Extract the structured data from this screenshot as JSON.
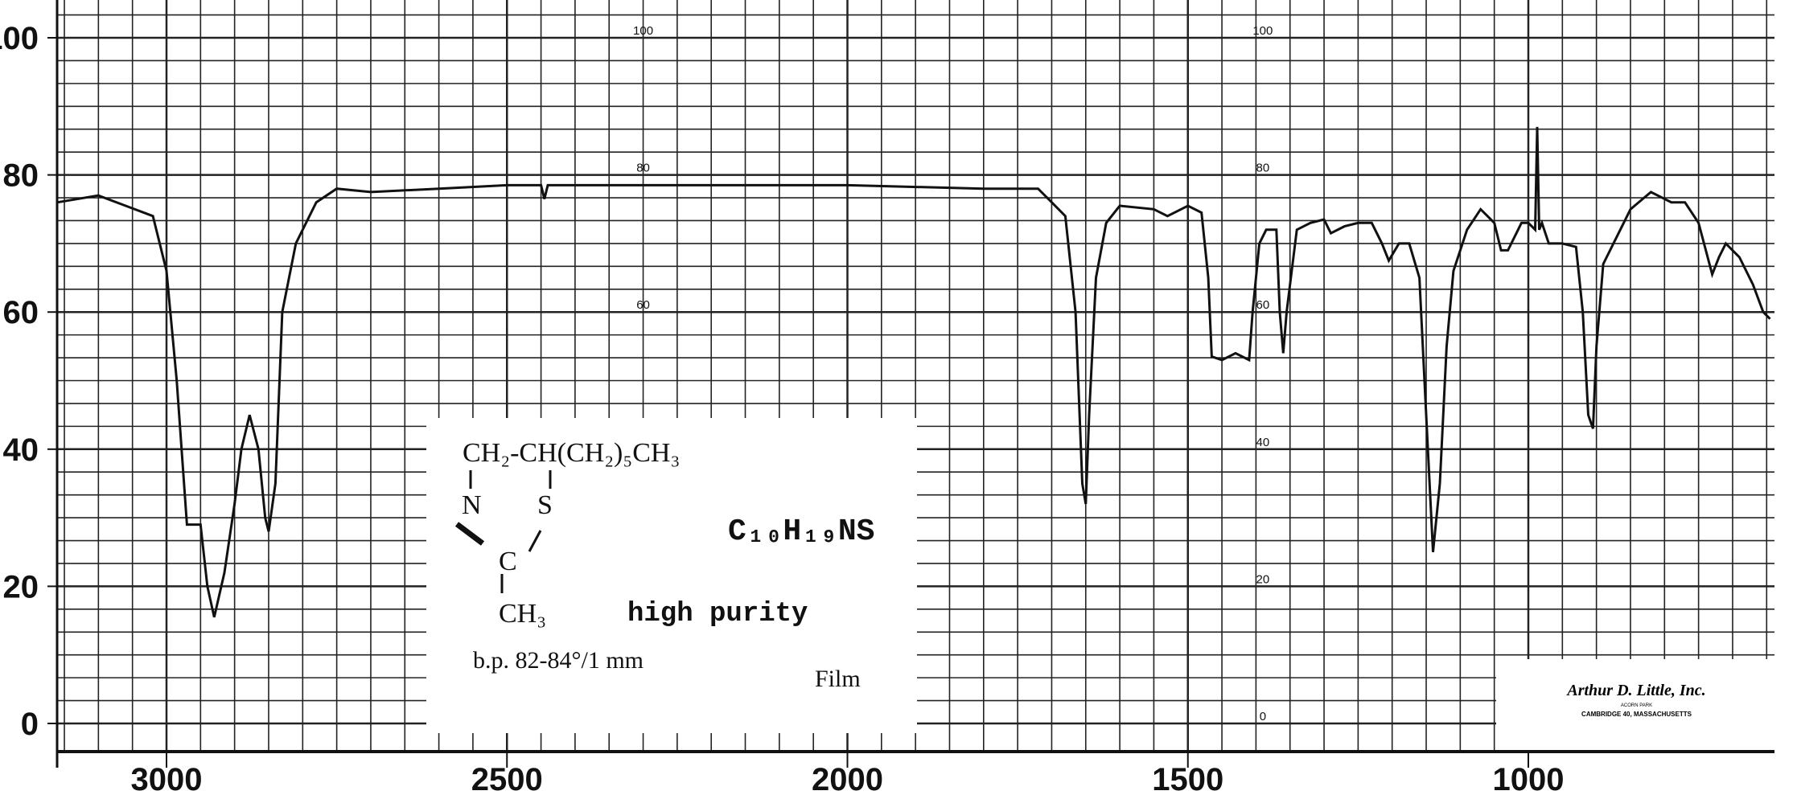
{
  "chart_data": {
    "type": "line",
    "title": "",
    "xlabel": "",
    "ylabel": "",
    "xlim": [
      3160,
      645
    ],
    "ylim": [
      0,
      100
    ],
    "grid": true,
    "x_ticks": [
      "3000",
      "2500",
      "2000",
      "1500",
      "1000"
    ],
    "x_tick_values": [
      3000,
      2500,
      2000,
      1500,
      1000
    ],
    "y_ticks": [
      "100",
      "80",
      "60",
      "40",
      "20",
      "0"
    ],
    "y_tick_values": [
      100,
      80,
      60,
      40,
      20,
      0
    ],
    "inner_scale_labels": [
      "100",
      "80",
      "60",
      "40",
      "20",
      "0"
    ],
    "line_color": "#111111",
    "series": [
      {
        "x": [
          3160,
          3100,
          3060,
          3020,
          3000,
          2985,
          2970,
          2950,
          2940,
          2930,
          2915,
          2900,
          2890,
          2878,
          2865,
          2855,
          2850,
          2840,
          2830,
          2810,
          2780,
          2750,
          2700,
          2600,
          2500,
          2450,
          2445,
          2440,
          2300,
          2000,
          1800,
          1720,
          1700,
          1680,
          1665,
          1655,
          1650,
          1645,
          1635,
          1620,
          1600,
          1550,
          1530,
          1500,
          1480,
          1470,
          1465,
          1450,
          1430,
          1410,
          1405,
          1395,
          1385,
          1370,
          1365,
          1360,
          1355,
          1340,
          1320,
          1300,
          1290,
          1270,
          1250,
          1230,
          1215,
          1205,
          1190,
          1175,
          1160,
          1150,
          1140,
          1130,
          1120,
          1110,
          1090,
          1070,
          1050,
          1040,
          1030,
          1010,
          1000,
          990,
          987,
          984,
          980,
          970,
          960,
          950,
          930,
          920,
          912,
          905,
          900,
          890,
          875,
          850,
          820,
          790,
          770,
          750,
          730,
          720,
          710,
          690,
          670,
          655,
          645
        ],
        "y": [
          76,
          77,
          75.5,
          74,
          66,
          50,
          29,
          29,
          20,
          15.5,
          22,
          32,
          40,
          45,
          40,
          30,
          28,
          35,
          60,
          70,
          76,
          78,
          77.5,
          78,
          78.5,
          78.5,
          76.5,
          78.5,
          78.5,
          78.5,
          78,
          78,
          76,
          74,
          60,
          35,
          32,
          45,
          65,
          73,
          75.5,
          75,
          74,
          75.5,
          74.5,
          65,
          53.5,
          53,
          54,
          53,
          60,
          70,
          72,
          72,
          60,
          54,
          60,
          72,
          73,
          73.5,
          71.5,
          72.5,
          73,
          73,
          70,
          67.5,
          70,
          70,
          65,
          45,
          25,
          35,
          55,
          66,
          72,
          75,
          73,
          69,
          69,
          73,
          73,
          72,
          87,
          72,
          73,
          70,
          70,
          70,
          69.5,
          60,
          45,
          43,
          55,
          67,
          70,
          75,
          77.5,
          76,
          76,
          73,
          65.5,
          68,
          70,
          68,
          64,
          60,
          59
        ]
      }
    ]
  },
  "sample_card": {
    "structure_line1": "CH₂-CH(CH₂)₅CH₃",
    "structure_n": "N",
    "structure_s": "S",
    "structure_c": "C",
    "structure_ch3": "CH₃",
    "formula": "C₁₀H₁₉NS",
    "purity": "high purity",
    "boiling_point": "b.p. 82-84°/1 mm",
    "sample_form": "Film"
  },
  "logo": {
    "name": "Arthur D. Little, Inc.",
    "line2": "ACORN PARK",
    "line3": "CAMBRIDGE 40, MASSACHUSETTS"
  }
}
